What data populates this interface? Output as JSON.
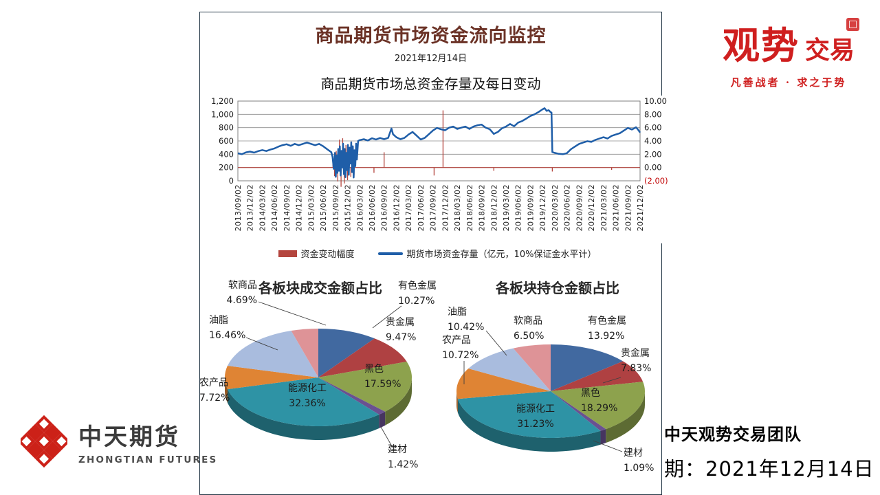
{
  "header": {
    "title": "商品期货市场资金流向监控",
    "date": "2021年12月14日"
  },
  "brand": {
    "part_large": "观势",
    "part_small": "交易",
    "tagline": "凡善战者 · 求之于势",
    "color": "#cf1f1f"
  },
  "company_logo": {
    "name_cn": "中天期货",
    "name_en": "ZHONGTIAN FUTURES",
    "accent": "#cc2118"
  },
  "footer": {
    "team": "中天观势交易团队",
    "date_line": "期：2021年12月14日"
  },
  "chart_data": [
    {
      "type": "line",
      "title": "商品期货市场总资金存量及每日变动",
      "grid": true,
      "legend_position": "bottom",
      "y_left": {
        "min": 0,
        "max": 1200,
        "step": 200,
        "tick_labels": [
          "0",
          "200",
          "400",
          "600",
          "800",
          "1,000",
          "1,200"
        ]
      },
      "y_right": {
        "min": -2,
        "max": 10,
        "step": 2,
        "tick_labels": [
          "(2.00)",
          "0.00",
          "2.00",
          "4.00",
          "6.00",
          "8.00",
          "10.00"
        ],
        "negative_color": "#c00000"
      },
      "x_range_months": 99,
      "x_tick_labels": [
        "2013/09/02",
        "2013/12/02",
        "2014/03/02",
        "2014/06/02",
        "2014/09/02",
        "2014/12/02",
        "2015/03/02",
        "2015/06/02",
        "2015/09/02",
        "2015/12/02",
        "2016/03/02",
        "2016/06/02",
        "2016/09/02",
        "2016/12/02",
        "2017/03/02",
        "2017/06/02",
        "2017/09/02",
        "2017/12/02",
        "2018/03/02",
        "2018/06/02",
        "2018/09/02",
        "2018/12/02",
        "2019/03/02",
        "2019/06/02",
        "2019/09/02",
        "2019/12/02",
        "2020/03/02",
        "2020/06/02",
        "2020/09/02",
        "2020/12/02",
        "2021/03/02",
        "2021/06/02",
        "2021/09/02",
        "2021/12/02"
      ],
      "series": [
        {
          "name": "资金变动幅度",
          "type": "bar",
          "axis": "right",
          "color": "#b4453e",
          "points": [
            [
              23.4,
              1.1
            ],
            [
              23.8,
              -1.3
            ],
            [
              24.2,
              2.5
            ],
            [
              24.6,
              -2.1
            ],
            [
              25,
              4.2
            ],
            [
              25.4,
              -2.9
            ],
            [
              25.8,
              4.4
            ],
            [
              26.2,
              -2.4
            ],
            [
              26.6,
              3.4
            ],
            [
              27,
              -1.9
            ],
            [
              27.4,
              2.7
            ],
            [
              27.8,
              -1.4
            ],
            [
              28.2,
              2
            ],
            [
              28.6,
              -1.1
            ],
            [
              33.5,
              -0.8
            ],
            [
              36,
              2.3
            ],
            [
              48.3,
              -1.2
            ],
            [
              50.5,
              8.6
            ],
            [
              63,
              -0.5
            ],
            [
              77.4,
              -0.6
            ],
            [
              92,
              -0.35
            ]
          ]
        },
        {
          "name": "期货市场资金存量（亿元，10%保证金水平计）",
          "type": "line",
          "axis": "left",
          "color": "#1f5ea8",
          "points": [
            [
              0,
              415
            ],
            [
              1,
              400
            ],
            [
              2,
              428
            ],
            [
              3,
              440
            ],
            [
              4,
              424
            ],
            [
              5,
              447
            ],
            [
              6,
              462
            ],
            [
              7,
              448
            ],
            [
              8,
              470
            ],
            [
              9,
              487
            ],
            [
              10,
              515
            ],
            [
              11,
              537
            ],
            [
              12,
              550
            ],
            [
              13,
              527
            ],
            [
              14,
              556
            ],
            [
              15,
              536
            ],
            [
              16,
              556
            ],
            [
              17,
              576
            ],
            [
              18,
              556
            ],
            [
              19,
              536
            ],
            [
              20,
              556
            ],
            [
              21,
              520
            ],
            [
              22,
              475
            ],
            [
              23,
              430
            ],
            [
              23.3,
              360
            ],
            [
              23.6,
              180
            ],
            [
              23.9,
              420
            ],
            [
              24.1,
              60
            ],
            [
              24.3,
              380
            ],
            [
              24.5,
              120
            ],
            [
              24.7,
              480
            ],
            [
              24.9,
              150
            ],
            [
              25.1,
              520
            ],
            [
              25.3,
              80
            ],
            [
              25.5,
              450
            ],
            [
              25.7,
              200
            ],
            [
              25.9,
              560
            ],
            [
              26.1,
              100
            ],
            [
              26.3,
              480
            ],
            [
              26.5,
              55
            ],
            [
              26.7,
              420
            ],
            [
              26.9,
              160
            ],
            [
              27.1,
              540
            ],
            [
              27.3,
              90
            ],
            [
              27.5,
              500
            ],
            [
              27.7,
              260
            ],
            [
              27.9,
              580
            ],
            [
              28.1,
              130
            ],
            [
              28.3,
              520
            ],
            [
              28.5,
              50
            ],
            [
              28.7,
              460
            ],
            [
              28.9,
              220
            ],
            [
              29.1,
              560
            ],
            [
              29.3,
              320
            ],
            [
              29.6,
              600
            ],
            [
              30,
              612
            ],
            [
              31,
              626
            ],
            [
              32,
              606
            ],
            [
              33,
              640
            ],
            [
              34,
              622
            ],
            [
              35,
              645
            ],
            [
              36,
              626
            ],
            [
              37,
              646
            ],
            [
              37.8,
              788
            ],
            [
              38.2,
              700
            ],
            [
              39,
              656
            ],
            [
              40,
              626
            ],
            [
              41,
              646
            ],
            [
              42,
              696
            ],
            [
              43,
              736
            ],
            [
              44,
              680
            ],
            [
              45,
              622
            ],
            [
              46,
              646
            ],
            [
              47,
              700
            ],
            [
              48,
              756
            ],
            [
              49,
              796
            ],
            [
              50,
              776
            ],
            [
              51,
              760
            ],
            [
              52,
              800
            ],
            [
              53,
              816
            ],
            [
              54,
              780
            ],
            [
              55,
              800
            ],
            [
              56,
              816
            ],
            [
              57,
              780
            ],
            [
              58,
              816
            ],
            [
              59,
              836
            ],
            [
              60,
              846
            ],
            [
              61,
              800
            ],
            [
              62,
              776
            ],
            [
              63,
              706
            ],
            [
              64,
              736
            ],
            [
              65,
              790
            ],
            [
              66,
              816
            ],
            [
              67,
              856
            ],
            [
              68,
              820
            ],
            [
              69,
              876
            ],
            [
              70,
              900
            ],
            [
              71,
              936
            ],
            [
              72,
              976
            ],
            [
              73,
              1000
            ],
            [
              74,
              1036
            ],
            [
              75,
              1076
            ],
            [
              75.5,
              1092
            ],
            [
              76,
              1052
            ],
            [
              76.5,
              1062
            ],
            [
              77,
              1032
            ],
            [
              77.2,
              1026
            ],
            [
              77.4,
              432
            ],
            [
              78,
              420
            ],
            [
              79,
              406
            ],
            [
              80,
              400
            ],
            [
              81,
              416
            ],
            [
              82,
              476
            ],
            [
              83,
              516
            ],
            [
              84,
              556
            ],
            [
              85,
              576
            ],
            [
              86,
              596
            ],
            [
              87,
              586
            ],
            [
              88,
              616
            ],
            [
              89,
              636
            ],
            [
              90,
              656
            ],
            [
              91,
              636
            ],
            [
              92,
              676
            ],
            [
              93,
              696
            ],
            [
              94,
              716
            ],
            [
              95,
              756
            ],
            [
              96,
              796
            ],
            [
              97,
              772
            ],
            [
              98,
              806
            ],
            [
              98.5,
              772
            ],
            [
              99,
              726
            ]
          ]
        }
      ]
    },
    {
      "type": "pie",
      "title": "各板块成交金额占比",
      "labels": [
        "有色金属",
        "贵金属",
        "黑色",
        "建材",
        "能源化工",
        "农产品",
        "油脂",
        "软商品"
      ],
      "values": [
        10.27,
        9.47,
        17.59,
        1.42,
        32.36,
        7.72,
        16.46,
        4.69
      ],
      "colors": [
        "#4169a0",
        "#af4142",
        "#8da24d",
        "#6a5191",
        "#2e93a5",
        "#df8434",
        "#a9bcde",
        "#de9397"
      ]
    },
    {
      "type": "pie",
      "title": "各板块持仓金额占比",
      "labels": [
        "有色金属",
        "贵金属",
        "黑色",
        "建材",
        "能源化工",
        "农产品",
        "油脂",
        "软商品"
      ],
      "values": [
        13.92,
        7.83,
        18.29,
        1.09,
        31.23,
        10.72,
        10.42,
        6.5
      ],
      "colors": [
        "#4169a0",
        "#af4142",
        "#8da24d",
        "#6a5191",
        "#2e93a5",
        "#df8434",
        "#a9bcde",
        "#de9397"
      ]
    }
  ]
}
